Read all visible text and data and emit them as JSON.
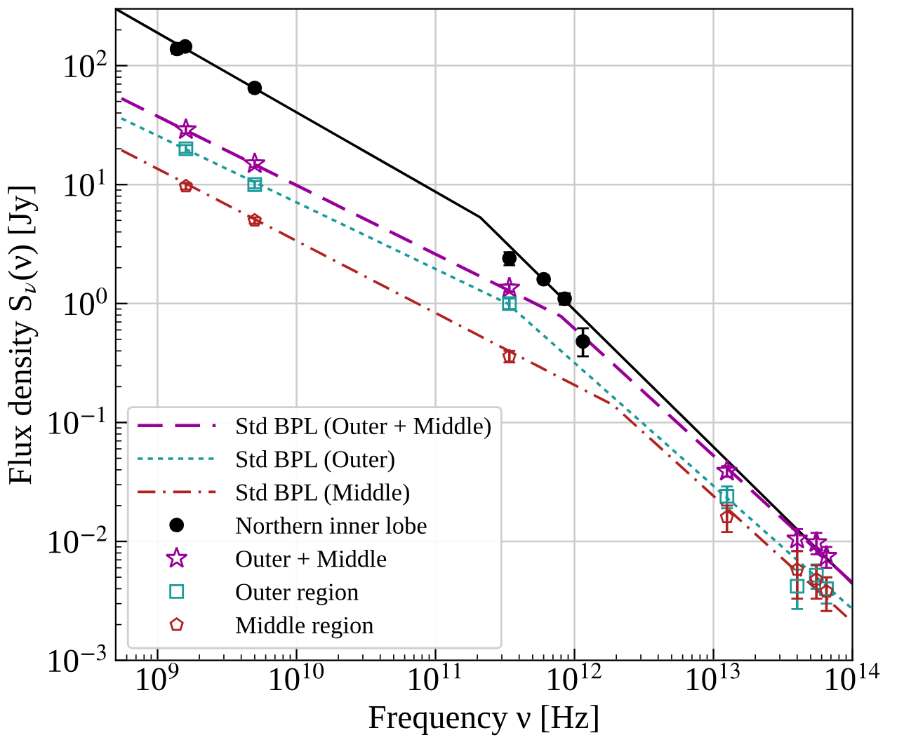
{
  "chart_data": {
    "type": "line",
    "xlabel": "Frequency ν [Hz]",
    "ylabel": "Flux density S$_{ν}$(ν) [Jy]",
    "log": "xy",
    "grid": true,
    "legend": "bottom left",
    "xlim": [
      500000000.0,
      100000000000000.0
    ],
    "ylim": [
      0.001,
      300
    ],
    "xticks": [
      {
        "value": 1000000000.0,
        "label": "10$^{9}$"
      },
      {
        "value": 10000000000.0,
        "label": "10$^{10}$"
      },
      {
        "value": 100000000000.0,
        "label": "10$^{11}$"
      },
      {
        "value": 1000000000000.0,
        "label": "10$^{12}$"
      },
      {
        "value": 10000000000000.0,
        "label": "10$^{13}$"
      },
      {
        "value": 100000000000000.0,
        "label": "10$^{14}$"
      }
    ],
    "yticks": [
      {
        "value": 0.001,
        "label": "10$^{−3}$"
      },
      {
        "value": 0.01,
        "label": "10$^{−2}$"
      },
      {
        "value": 0.1,
        "label": "10$^{−1}$"
      },
      {
        "value": 1,
        "label": "10$^{0}$"
      },
      {
        "value": 10,
        "label": "10$^{1}$"
      },
      {
        "value": 100,
        "label": "10$^{2}$"
      }
    ],
    "series": [
      {
        "color": "#000000",
        "line_style": "solid",
        "x": [
          500000000.0,
          210000000000.0,
          100000000000000.0
        ],
        "values": [
          300,
          5.3,
          0.0044
        ]
      },
      {
        "name": "Std BPL (Outer + Middle)",
        "color": "#990099",
        "line_style": "dashed",
        "x": [
          550000000.0,
          800000000000.0,
          100000000000000.0
        ],
        "values": [
          53,
          0.78,
          0.0045
        ]
      },
      {
        "name": "Std BPL (Outer)",
        "color": "#1a9a9a",
        "line_style": "dotted",
        "x": [
          550000000.0,
          330000000000.0,
          100000000000000.0
        ],
        "values": [
          36,
          1.0,
          0.0027
        ]
      },
      {
        "name": "Std BPL (Middle)",
        "color": "#b22222",
        "line_style": "dashdot",
        "x": [
          550000000.0,
          1900000000000.0,
          100000000000000.0
        ],
        "values": [
          19.5,
          0.14,
          0.0021
        ]
      },
      {
        "type": "scatter",
        "name": "Northern inner lobe",
        "color": "#000000",
        "marker": "circle",
        "x": [
          1380000000.0,
          1580000000.0,
          5000000000.0,
          340000000000.0,
          600000000000.0,
          850000000000.0,
          1150000000000.0
        ],
        "values": [
          138,
          145,
          65,
          2.4,
          1.6,
          1.1,
          0.48
        ],
        "errors": [
          12,
          8,
          5,
          0.3,
          0.12,
          0.12,
          [
            0.36,
            0.62
          ]
        ]
      },
      {
        "type": "scatter",
        "name": "Outer + Middle",
        "color": "#990099",
        "marker": "star",
        "x": [
          1600000000.0,
          5000000000.0,
          340000000000.0,
          12500000000000.0,
          40000000000000.0,
          55000000000000.0,
          65000000000000.0
        ],
        "values": [
          29,
          15,
          1.35,
          0.039,
          0.0105,
          0.0098,
          0.0075
        ],
        "errors": [
          2,
          1,
          0.1,
          0.004,
          0.0022,
          0.002,
          0.0015
        ]
      },
      {
        "type": "scatter",
        "name": "Outer region",
        "color": "#1a9a9a",
        "marker": "square",
        "x": [
          1600000000.0,
          5000000000.0,
          340000000000.0,
          12500000000000.0,
          40000000000000.0,
          55000000000000.0,
          65000000000000.0
        ],
        "values": [
          20,
          10,
          1.0,
          0.024,
          0.0042,
          0.0052,
          0.004
        ],
        "errors": [
          1.5,
          0.7,
          0.1,
          0.005,
          [
            0.0027,
            0.0058
          ],
          0.0012,
          0.001
        ]
      },
      {
        "type": "scatter",
        "name": "Middle region",
        "color": "#b22222",
        "x": [
          1600000000.0,
          5000000000.0,
          340000000000.0,
          12500000000000.0,
          40000000000000.0,
          55000000000000.0,
          65000000000000.0
        ],
        "values": [
          9.7,
          5.0,
          0.36,
          0.016,
          0.0058,
          0.0048,
          0.0038
        ],
        "errors": [
          0.6,
          0.3,
          0.04,
          0.004,
          0.0025,
          0.0015,
          0.0012
        ]
      }
    ]
  }
}
